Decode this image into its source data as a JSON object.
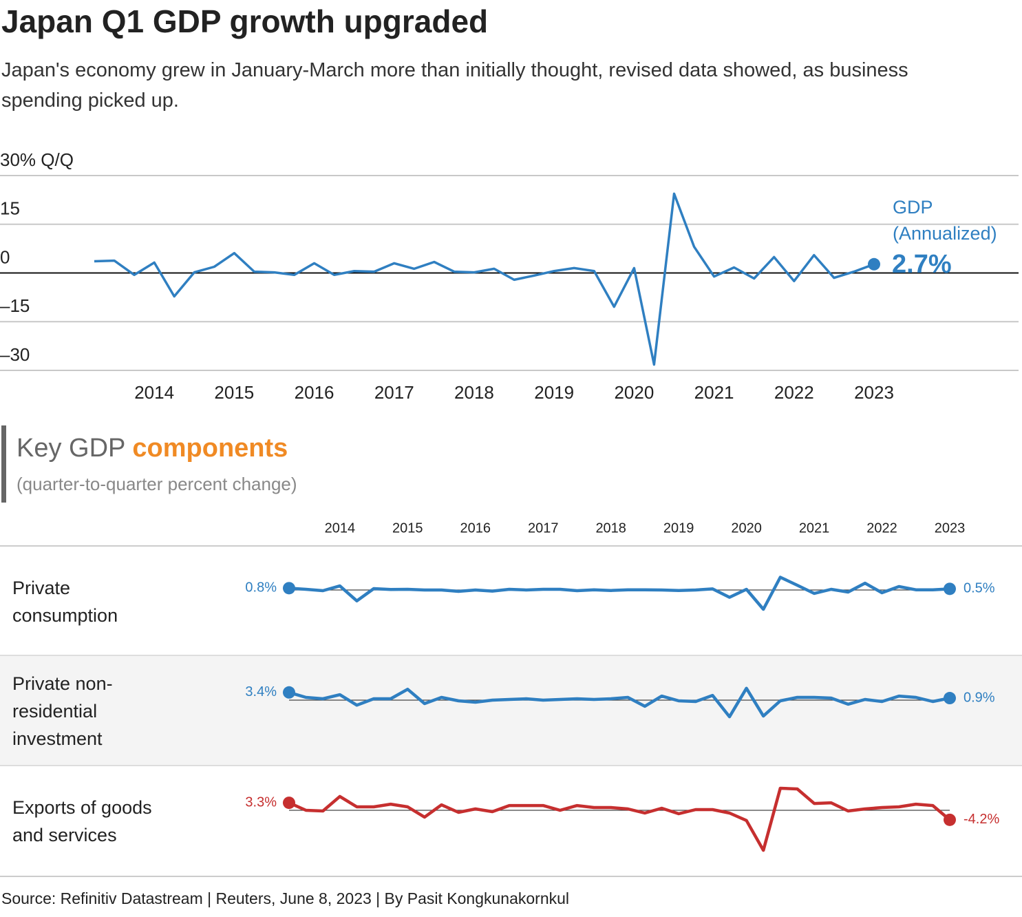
{
  "source": "Source: Refinitiv Datastream | Reuters, June 8, 2023 | By Pasit Kongkunakornkul",
  "chart_data": [
    {
      "type": "line",
      "title": "Japan Q1 GDP growth upgraded",
      "subtitle": "Japan's economy grew in January-March more than initially thought, revised data showed, as business spending picked up.",
      "x": [
        2013.25,
        2013.5,
        2013.75,
        2014,
        2014.25,
        2014.5,
        2014.75,
        2015,
        2015.25,
        2015.5,
        2015.75,
        2016,
        2016.25,
        2016.5,
        2016.75,
        2017,
        2017.25,
        2017.5,
        2017.75,
        2018,
        2018.25,
        2018.5,
        2018.75,
        2019,
        2019.25,
        2019.5,
        2019.75,
        2020,
        2020.25,
        2020.5,
        2020.75,
        2021,
        2021.25,
        2021.5,
        2021.75,
        2022,
        2022.25,
        2022.5,
        2022.75,
        2023
      ],
      "xlim": [
        2013.25,
        2023
      ],
      "xticks": [
        2014,
        2015,
        2016,
        2017,
        2018,
        2019,
        2020,
        2021,
        2022,
        2023
      ],
      "ylim": [
        -30,
        30
      ],
      "yticks": [
        {
          "value": -30,
          "label": "–30"
        },
        {
          "value": -15,
          "label": "–15"
        },
        0,
        15,
        {
          "value": 30,
          "label": "30% Q/Q"
        }
      ],
      "grid": true,
      "series": [
        {
          "name": "GDP (Annualized)",
          "color": "#2f7fc1",
          "values": [
            3.6,
            3.8,
            -0.6,
            3.2,
            -7.2,
            0.2,
            1.9,
            6.1,
            0.4,
            0.2,
            -0.6,
            3.0,
            -0.6,
            0.6,
            0.4,
            3.0,
            1.3,
            3.4,
            0.4,
            0.2,
            1.3,
            -2.1,
            -0.8,
            0.6,
            1.5,
            0.6,
            -10.4,
            1.5,
            -28.2,
            24.4,
            8.1,
            -1.1,
            1.7,
            -1.7,
            4.9,
            -2.5,
            5.5,
            -1.5,
            0.4,
            2.7
          ],
          "value_labels": [
            null,
            null,
            null,
            null,
            null,
            null,
            null,
            null,
            null,
            null,
            null,
            null,
            null,
            null,
            null,
            null,
            null,
            null,
            null,
            null,
            null,
            null,
            null,
            null,
            null,
            null,
            null,
            null,
            null,
            null,
            null,
            null,
            null,
            null,
            null,
            null,
            null,
            null,
            null,
            "2.7%"
          ]
        }
      ]
    },
    {
      "type": "small-multiples",
      "title": "Key GDP",
      "title_emphasis": "components",
      "subtitle": "(quarter-to-quarter percent change)",
      "x": [
        2013.25,
        2013.5,
        2013.75,
        2014,
        2014.25,
        2014.5,
        2014.75,
        2015,
        2015.25,
        2015.5,
        2015.75,
        2016,
        2016.25,
        2016.5,
        2016.75,
        2017,
        2017.25,
        2017.5,
        2017.75,
        2018,
        2018.25,
        2018.5,
        2018.75,
        2019,
        2019.25,
        2019.5,
        2019.75,
        2020,
        2020.25,
        2020.5,
        2020.75,
        2021,
        2021.25,
        2021.5,
        2021.75,
        2022,
        2022.25,
        2022.5,
        2022.75,
        2023
      ],
      "xlim": [
        2013.25,
        2023
      ],
      "xticks": [
        2014,
        2015,
        2016,
        2017,
        2018,
        2019,
        2020,
        2021,
        2022,
        2023
      ],
      "ylim": [
        -20,
        20
      ],
      "series": [
        {
          "name": "Private consumption",
          "color": "#2f7fc1",
          "values": [
            0.8,
            0.3,
            -0.3,
            1.8,
            -4.8,
            0.6,
            0.2,
            0.3,
            0.0,
            0.0,
            -0.6,
            0.0,
            -0.5,
            0.3,
            0.0,
            0.3,
            0.3,
            -0.3,
            0.1,
            -0.2,
            0.1,
            0.1,
            0.0,
            -0.2,
            0.0,
            0.5,
            -3.2,
            0.3,
            -8.5,
            5.6,
            2.1,
            -1.5,
            0.3,
            -0.9,
            3.0,
            -1.2,
            1.5,
            0.1,
            0.1,
            0.5
          ],
          "value_labels": [
            "0.8%",
            null,
            null,
            null,
            null,
            null,
            null,
            null,
            null,
            null,
            null,
            null,
            null,
            null,
            null,
            null,
            null,
            null,
            null,
            null,
            null,
            null,
            null,
            null,
            null,
            null,
            null,
            null,
            null,
            null,
            null,
            null,
            null,
            null,
            null,
            null,
            null,
            null,
            null,
            "0.5%"
          ]
        },
        {
          "name": "Private non-residential investment",
          "color": "#2f7fc1",
          "values": [
            3.4,
            1.2,
            0.6,
            2.4,
            -2.2,
            0.6,
            0.6,
            4.8,
            -1.5,
            1.2,
            -0.3,
            -0.9,
            0.0,
            0.3,
            0.6,
            0.0,
            0.3,
            0.6,
            0.3,
            0.6,
            1.2,
            -2.7,
            1.8,
            -0.3,
            -0.6,
            2.1,
            -7.3,
            5.2,
            -7.0,
            -0.3,
            1.2,
            1.2,
            0.9,
            -1.8,
            0.3,
            -0.6,
            1.8,
            1.2,
            -0.6,
            0.9
          ],
          "value_labels": [
            "3.4%",
            null,
            null,
            null,
            null,
            null,
            null,
            null,
            null,
            null,
            null,
            null,
            null,
            null,
            null,
            null,
            null,
            null,
            null,
            null,
            null,
            null,
            null,
            null,
            null,
            null,
            null,
            null,
            null,
            null,
            null,
            null,
            null,
            null,
            null,
            null,
            null,
            null,
            null,
            "0.9%"
          ]
        },
        {
          "name": "Exports of goods and services",
          "color": "#c62f2f",
          "values": [
            3.3,
            0.0,
            -0.3,
            6.1,
            1.5,
            1.5,
            2.7,
            1.5,
            -3.0,
            2.4,
            -0.9,
            0.6,
            -0.6,
            2.1,
            2.1,
            2.1,
            0.0,
            2.1,
            1.2,
            1.2,
            0.6,
            -1.2,
            0.9,
            -1.5,
            0.3,
            0.3,
            -1.2,
            -4.5,
            -17.6,
            9.7,
            9.4,
            3.0,
            3.3,
            -0.3,
            0.6,
            1.2,
            1.5,
            2.7,
            2.1,
            -4.2
          ],
          "value_labels": [
            "3.3%",
            null,
            null,
            null,
            null,
            null,
            null,
            null,
            null,
            null,
            null,
            null,
            null,
            null,
            null,
            null,
            null,
            null,
            null,
            null,
            null,
            null,
            null,
            null,
            null,
            null,
            null,
            null,
            null,
            null,
            null,
            null,
            null,
            null,
            null,
            null,
            null,
            null,
            null,
            "-4.2%"
          ]
        }
      ]
    }
  ]
}
